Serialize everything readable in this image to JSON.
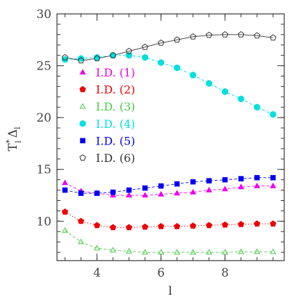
{
  "chart_data": {
    "type": "line",
    "xlabel": "l",
    "ylabel": {
      "main": "T",
      "sup": "*",
      "sub": "l",
      "delta": "Δ",
      "delta_sub": "l"
    },
    "xlim": [
      2.75,
      9.85
    ],
    "ylim": [
      6.2,
      30
    ],
    "xticks": [
      4,
      6,
      8
    ],
    "yticks": [
      10,
      15,
      20,
      25,
      30
    ],
    "x_minor_step": 0.5,
    "y_minor_step": 1,
    "grid": false,
    "legend_position": "upper-left",
    "x": [
      3,
      3.5,
      4,
      4.5,
      5,
      5.5,
      6,
      6.5,
      7,
      7.5,
      8,
      8.5,
      9,
      9.5
    ],
    "series": [
      {
        "name": "I.D. (1)",
        "marker": "triangle-filled",
        "color": "#ee00ee",
        "line": "dashed",
        "values": [
          13.7,
          12.9,
          12.7,
          12.5,
          12.5,
          12.5,
          12.6,
          12.7,
          12.8,
          13.0,
          13.1,
          13.3,
          13.4,
          13.4
        ]
      },
      {
        "name": "I.D. (2)",
        "marker": "pentagon-filled",
        "color": "#ee0000",
        "line": "dotted",
        "values": [
          10.9,
          10.0,
          9.6,
          9.4,
          9.4,
          9.45,
          9.5,
          9.5,
          9.55,
          9.6,
          9.65,
          9.7,
          9.75,
          9.75
        ]
      },
      {
        "name": "I.D. (3)",
        "marker": "triangle-open",
        "color": "#44cc44",
        "line": "dashed",
        "values": [
          9.1,
          8.0,
          7.4,
          7.2,
          7.1,
          7.0,
          7.0,
          7.0,
          7.0,
          7.0,
          7.0,
          7.05,
          7.05,
          7.05
        ]
      },
      {
        "name": "I.D. (4)",
        "marker": "circle-filled",
        "color": "#00e0e0",
        "line": "dashed",
        "values": [
          25.6,
          25.7,
          25.8,
          26.0,
          26.0,
          25.8,
          25.3,
          24.8,
          24.1,
          23.3,
          22.5,
          21.8,
          21.0,
          20.3
        ]
      },
      {
        "name": "I.D. (5)",
        "marker": "square-filled",
        "color": "#0000ee",
        "line": "dashed",
        "values": [
          13.0,
          12.7,
          12.7,
          12.8,
          13.0,
          13.2,
          13.4,
          13.6,
          13.8,
          13.9,
          14.0,
          14.1,
          14.2,
          14.2
        ]
      },
      {
        "name": "I.D. (6)",
        "marker": "pentagon-open",
        "color": "#333333",
        "line": "solid",
        "values": [
          25.8,
          25.5,
          25.7,
          26.0,
          26.4,
          26.8,
          27.2,
          27.5,
          27.8,
          27.95,
          28.0,
          28.0,
          27.9,
          27.7
        ]
      }
    ]
  }
}
